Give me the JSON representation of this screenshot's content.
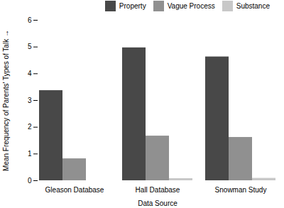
{
  "chart_data": {
    "type": "bar",
    "xlabel": "Data Source",
    "ylabel": "Mean Frequency of Parents' Types of Talk",
    "categories": [
      "Gleason Database",
      "Hall Database",
      "Snowman Study"
    ],
    "series": [
      {
        "name": "Property",
        "values": [
          3.37,
          4.97,
          4.63
        ],
        "color": "#484848"
      },
      {
        "name": "Vague Process",
        "values": [
          0.82,
          1.67,
          1.62
        ],
        "color": "#909090"
      },
      {
        "name": "Substance",
        "values": [
          0.0,
          0.08,
          0.09
        ],
        "color": "#c8c8c8"
      }
    ],
    "ylim": [
      0,
      6
    ],
    "yticks": [
      0,
      1,
      2,
      3,
      4,
      5,
      6
    ],
    "legend": "upper right",
    "grid": false
  }
}
